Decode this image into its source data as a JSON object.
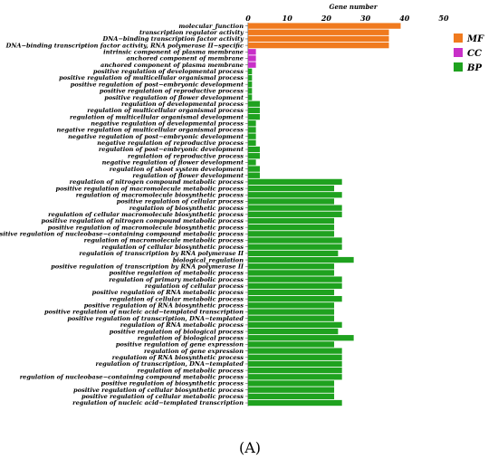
{
  "chart_data": {
    "type": "bar",
    "orientation": "horizontal",
    "xlabel": "Gene number",
    "xlim": [
      0,
      50
    ],
    "xticks": [
      0,
      10,
      20,
      30,
      40,
      50
    ],
    "x_axis_position": "top",
    "grid": false,
    "legend_position": "right",
    "panel_label": "(A)",
    "groups": [
      {
        "name": "MF",
        "color": "#F07A1E"
      },
      {
        "name": "CC",
        "color": "#C82FC8"
      },
      {
        "name": "BP",
        "color": "#1FA21F"
      }
    ],
    "categories": [
      {
        "label": "molecular_function",
        "value": 39,
        "group": "MF"
      },
      {
        "label": "transcription regulator activity",
        "value": 36,
        "group": "MF"
      },
      {
        "label": "DNA−binding transcription factor activity",
        "value": 36,
        "group": "MF"
      },
      {
        "label": "DNA−binding transcription factor activity, RNA polymerase II−specific",
        "value": 36,
        "group": "MF"
      },
      {
        "label": "intrinsic component of plasma membrane",
        "value": 2,
        "group": "CC"
      },
      {
        "label": "anchored component of membrane",
        "value": 2,
        "group": "CC"
      },
      {
        "label": "anchored component of plasma membrane",
        "value": 2,
        "group": "CC"
      },
      {
        "label": "positive regulation of developmental process",
        "value": 1,
        "group": "BP"
      },
      {
        "label": "positive regulation of multicellular organismal process",
        "value": 1,
        "group": "BP"
      },
      {
        "label": "positive regulation of post−embryonic development",
        "value": 1,
        "group": "BP"
      },
      {
        "label": "positive regulation of reproductive process",
        "value": 1,
        "group": "BP"
      },
      {
        "label": "positive regulation of flower development",
        "value": 1,
        "group": "BP"
      },
      {
        "label": "regulation of developmental process",
        "value": 3,
        "group": "BP"
      },
      {
        "label": "regulation of multicellular organismal process",
        "value": 3,
        "group": "BP"
      },
      {
        "label": "regulation of multicellular organismal development",
        "value": 3,
        "group": "BP"
      },
      {
        "label": "negative regulation of developmental process",
        "value": 2,
        "group": "BP"
      },
      {
        "label": "negative regulation of multicellular organismal process",
        "value": 2,
        "group": "BP"
      },
      {
        "label": "negative regulation of post−embryonic development",
        "value": 2,
        "group": "BP"
      },
      {
        "label": "negative regulation of reproductive process",
        "value": 2,
        "group": "BP"
      },
      {
        "label": "regulation of post−embryonic development",
        "value": 3,
        "group": "BP"
      },
      {
        "label": "regulation of reproductive process",
        "value": 3,
        "group": "BP"
      },
      {
        "label": "negative regulation of flower development",
        "value": 2,
        "group": "BP"
      },
      {
        "label": "regulation of shoot system development",
        "value": 3,
        "group": "BP"
      },
      {
        "label": "regulation of flower development",
        "value": 3,
        "group": "BP"
      },
      {
        "label": "regulation of nitrogen compound metabolic process",
        "value": 24,
        "group": "BP"
      },
      {
        "label": "positive regulation of macromolecule metabolic process",
        "value": 22,
        "group": "BP"
      },
      {
        "label": "regulation of macromolecule biosynthetic process",
        "value": 24,
        "group": "BP"
      },
      {
        "label": "positive regulation of cellular process",
        "value": 22,
        "group": "BP"
      },
      {
        "label": "regulation of biosynthetic process",
        "value": 24,
        "group": "BP"
      },
      {
        "label": "regulation of cellular macromolecule biosynthetic process",
        "value": 24,
        "group": "BP"
      },
      {
        "label": "positive regulation of nitrogen compound metabolic process",
        "value": 22,
        "group": "BP"
      },
      {
        "label": "positive regulation of macromolecule biosynthetic process",
        "value": 22,
        "group": "BP"
      },
      {
        "label": "positive regulation of nucleobase−containing compound metabolic process",
        "value": 22,
        "group": "BP"
      },
      {
        "label": "regulation of macromolecule metabolic process",
        "value": 24,
        "group": "BP"
      },
      {
        "label": "regulation of cellular biosynthetic process",
        "value": 24,
        "group": "BP"
      },
      {
        "label": "regulation of transcription by RNA polymerase II",
        "value": 23,
        "group": "BP"
      },
      {
        "label": "biological_regulation",
        "value": 27,
        "group": "BP"
      },
      {
        "label": "positive regulation of transcription by RNA polymerase II",
        "value": 22,
        "group": "BP"
      },
      {
        "label": "positive regulation of metabolic process",
        "value": 22,
        "group": "BP"
      },
      {
        "label": "regulation of primary metabolic process",
        "value": 24,
        "group": "BP"
      },
      {
        "label": "regulation of cellular process",
        "value": 24,
        "group": "BP"
      },
      {
        "label": "positive regulation of RNA metabolic process",
        "value": 22,
        "group": "BP"
      },
      {
        "label": "regulation of cellular metabolic process",
        "value": 24,
        "group": "BP"
      },
      {
        "label": "positive regulation of RNA biosynthetic process",
        "value": 22,
        "group": "BP"
      },
      {
        "label": "positive regulation of nucleic acid−templated transcription",
        "value": 22,
        "group": "BP"
      },
      {
        "label": "positive regulation of transcription, DNA−templated",
        "value": 22,
        "group": "BP"
      },
      {
        "label": "regulation of RNA metabolic process",
        "value": 24,
        "group": "BP"
      },
      {
        "label": "positive regulation of biological process",
        "value": 23,
        "group": "BP"
      },
      {
        "label": "regulation of biological process",
        "value": 27,
        "group": "BP"
      },
      {
        "label": "positive regulation of gene expression",
        "value": 22,
        "group": "BP"
      },
      {
        "label": "regulation of gene expression",
        "value": 24,
        "group": "BP"
      },
      {
        "label": "regulation of RNA biosynthetic process",
        "value": 24,
        "group": "BP"
      },
      {
        "label": "regulation of transcription, DNA−templated",
        "value": 24,
        "group": "BP"
      },
      {
        "label": "regulation of metabolic process",
        "value": 24,
        "group": "BP"
      },
      {
        "label": "regulation of nucleobase−containing compound metabolic process",
        "value": 24,
        "group": "BP"
      },
      {
        "label": "positive regulation of biosynthetic process",
        "value": 22,
        "group": "BP"
      },
      {
        "label": "positive regulation of cellular biosynthetic process",
        "value": 22,
        "group": "BP"
      },
      {
        "label": "positive regulation of cellular metabolic process",
        "value": 22,
        "group": "BP"
      },
      {
        "label": "regulation of nucleic acid−templated transcription",
        "value": 24,
        "group": "BP"
      }
    ]
  }
}
